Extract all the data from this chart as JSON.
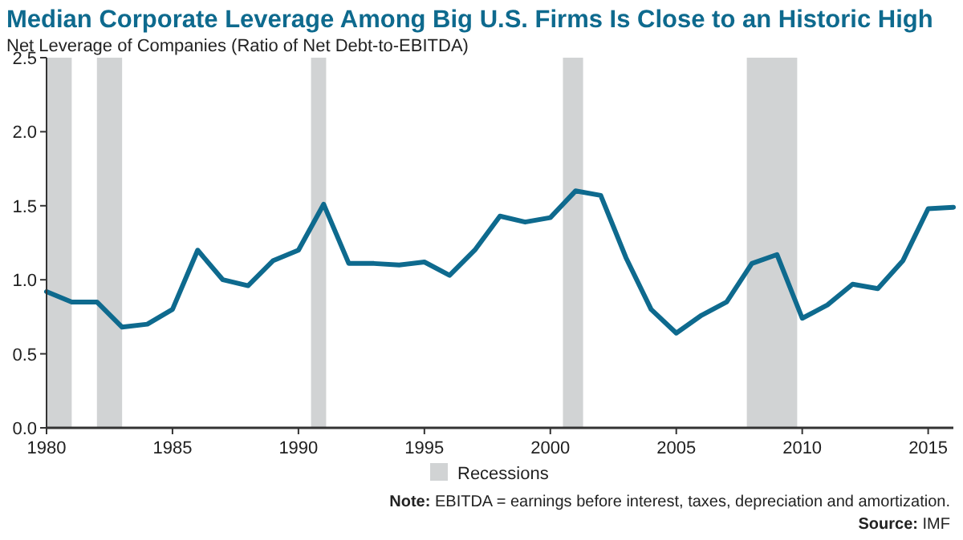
{
  "chart_data": {
    "type": "line",
    "title": "Median Corporate Leverage Among Big U.S. Firms Is Close to an Historic High",
    "subtitle": "Net Leverage of Companies (Ratio of Net Debt-to-EBITDA)",
    "x": [
      1980,
      1981,
      1982,
      1983,
      1984,
      1985,
      1986,
      1987,
      1988,
      1989,
      1990,
      1991,
      1992,
      1993,
      1994,
      1995,
      1996,
      1997,
      1998,
      1999,
      2000,
      2001,
      2002,
      2003,
      2004,
      2005,
      2006,
      2007,
      2008,
      2009,
      2010,
      2011,
      2012,
      2013,
      2014,
      2015,
      2016
    ],
    "series": [
      {
        "color": "#0e6a8e",
        "values": [
          0.92,
          0.85,
          0.85,
          0.68,
          0.7,
          0.8,
          1.2,
          1.0,
          0.96,
          1.13,
          1.2,
          1.51,
          1.11,
          1.11,
          1.1,
          1.12,
          1.03,
          1.2,
          1.43,
          1.39,
          1.42,
          1.6,
          1.57,
          1.15,
          0.8,
          0.64,
          0.76,
          0.85,
          1.11,
          1.17,
          0.74,
          0.83,
          0.97,
          0.94,
          1.13,
          1.48,
          1.49
        ]
      }
    ],
    "xlim": [
      1980,
      2016
    ],
    "xticks": [
      1980,
      1985,
      1990,
      1995,
      2000,
      2005,
      2010,
      2015
    ],
    "ylim": [
      0,
      2.5
    ],
    "yticks": [
      {
        "value": 0,
        "label": "0.0"
      },
      {
        "value": 0.5,
        "label": "0.5"
      },
      {
        "value": 1,
        "label": "1.0"
      },
      {
        "value": 1.5,
        "label": "1.5"
      },
      {
        "value": 2,
        "label": "2.0"
      },
      {
        "value": 2.5,
        "label": "2.5"
      }
    ],
    "bands": [
      {
        "axis": "x",
        "from": 1980,
        "to": 1981,
        "label": "Recessions",
        "color": "#d1d3d4"
      },
      {
        "axis": "x",
        "from": 1982,
        "to": 1983,
        "color": "#d1d3d4"
      },
      {
        "axis": "x",
        "from": 1990.5,
        "to": 1991.1,
        "color": "#d1d3d4"
      },
      {
        "axis": "x",
        "from": 2000.5,
        "to": 2001.3,
        "color": "#d1d3d4"
      },
      {
        "axis": "x",
        "from": 2007.8,
        "to": 2009.8,
        "color": "#d1d3d4"
      }
    ],
    "legend": "bottom",
    "grid": false,
    "marker": "none",
    "line_style": "solid",
    "annotations": [
      "Note: EBITDA = earnings before interest, taxes, depreciation and amortization.",
      "Source: IMF"
    ]
  }
}
